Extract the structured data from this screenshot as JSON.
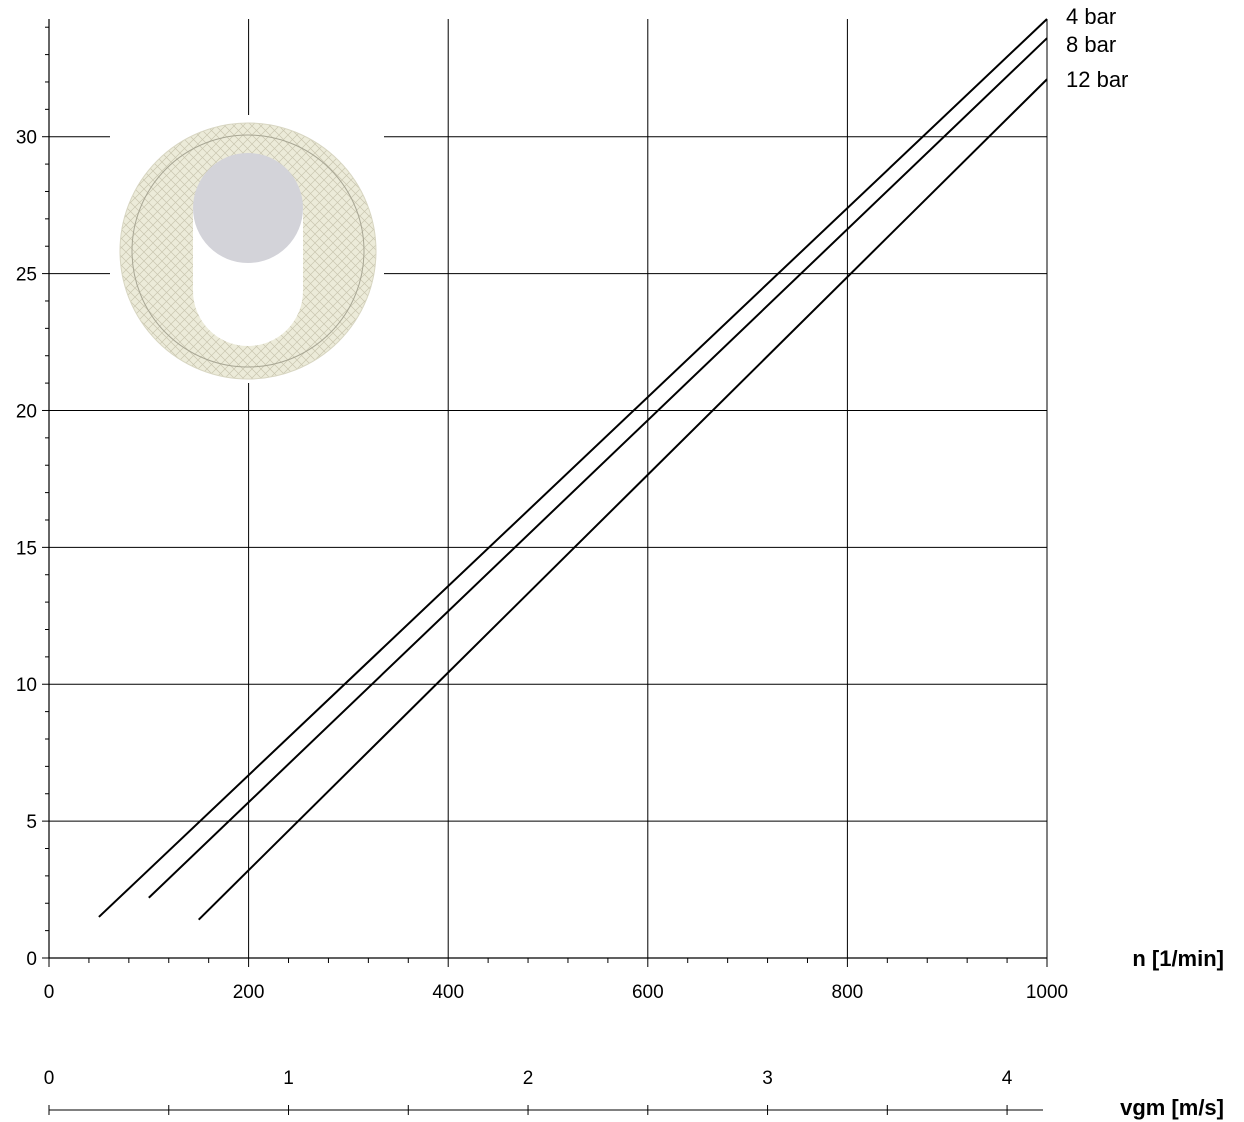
{
  "chart_data": {
    "type": "line",
    "title": "",
    "xlabel": "n [1/min]",
    "ylabel": "",
    "xlim": [
      0,
      1000
    ],
    "ylim": [
      0,
      34.3
    ],
    "grid": true,
    "x_ticks": [
      0,
      200,
      400,
      600,
      800,
      1000
    ],
    "y_ticks": [
      0,
      5,
      10,
      15,
      20,
      25,
      30
    ],
    "secondary_x_axis": {
      "label": "vgm [m/s]",
      "range": [
        0,
        4.15
      ],
      "ticks": [
        0,
        1,
        2,
        3,
        4
      ]
    },
    "series": [
      {
        "name": "4 bar",
        "x": [
          50,
          1000
        ],
        "y": [
          1.5,
          34.3
        ]
      },
      {
        "name": "8 bar",
        "x": [
          100,
          1000
        ],
        "y": [
          2.2,
          33.6
        ]
      },
      {
        "name": "12 bar",
        "x": [
          150,
          1000
        ],
        "y": [
          1.4,
          32.1
        ]
      }
    ],
    "inset": {
      "icon": "bearing-cross-section-icon",
      "ring_color": "#ecebd9",
      "hole_color": "#d3d3d9"
    }
  }
}
